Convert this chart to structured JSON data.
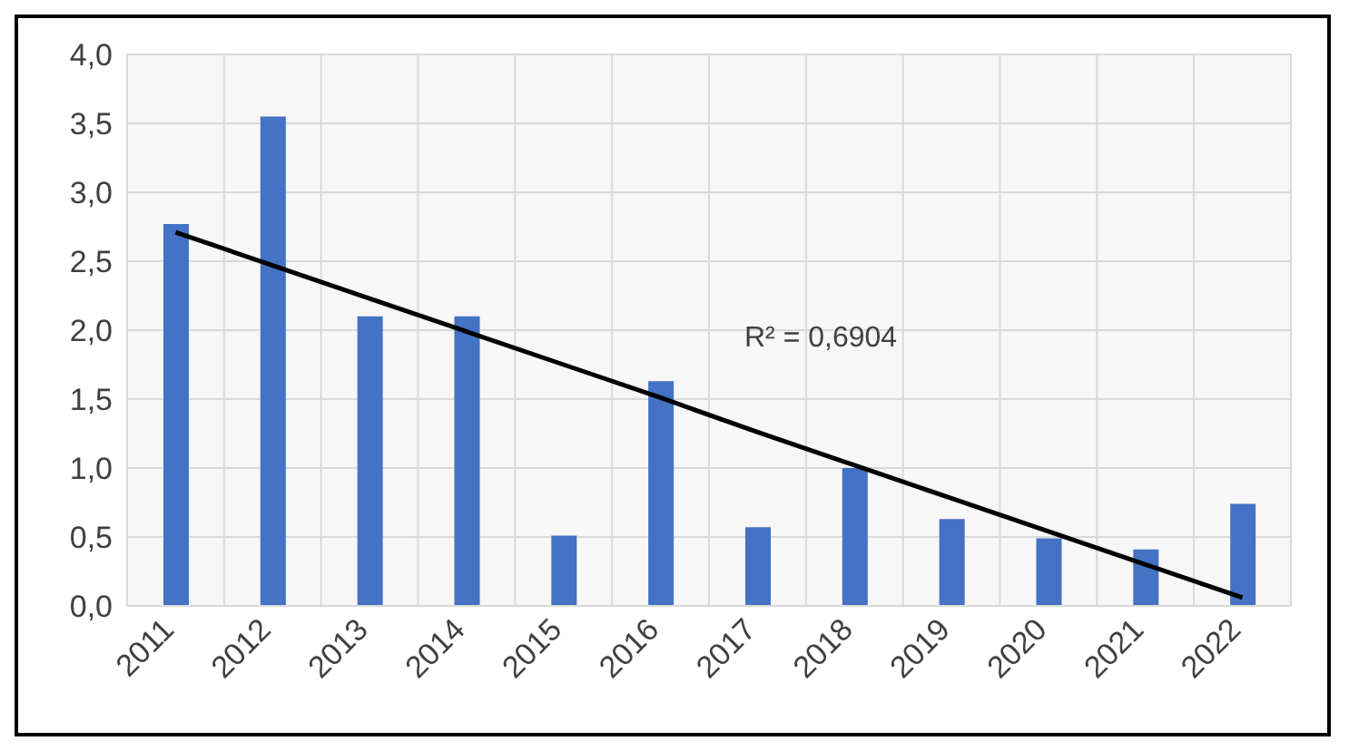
{
  "chart_data": {
    "type": "bar",
    "categories": [
      "2011",
      "2012",
      "2013",
      "2014",
      "2015",
      "2016",
      "2017",
      "2018",
      "2019",
      "2020",
      "2021",
      "2022"
    ],
    "series": [
      {
        "color": "#4472c4",
        "values": [
          2.77,
          3.55,
          2.1,
          2.1,
          0.51,
          1.63,
          0.57,
          1.0,
          0.63,
          0.49,
          0.41,
          0.74
        ]
      },
      {
        "type": "line",
        "color": "#000000",
        "values": [
          2.71,
          2.47,
          2.23,
          1.99,
          1.75,
          1.51,
          1.26,
          1.02,
          0.78,
          0.54,
          0.3,
          0.06
        ]
      }
    ],
    "ylim": [
      0,
      4
    ],
    "yticks": [
      {
        "value": 0,
        "label": "0,0"
      },
      {
        "value": 0.5,
        "label": "0,5"
      },
      {
        "value": 1,
        "label": "1,0"
      },
      {
        "value": 1.5,
        "label": "1,5"
      },
      {
        "value": 2,
        "label": "2,0"
      },
      {
        "value": 2.5,
        "label": "2,5"
      },
      {
        "value": 3,
        "label": "3,0"
      },
      {
        "value": 3.5,
        "label": "3,5"
      },
      {
        "value": 4,
        "label": "4,0"
      }
    ],
    "grid": true,
    "annotations": [
      "R² = 0,6904"
    ]
  }
}
